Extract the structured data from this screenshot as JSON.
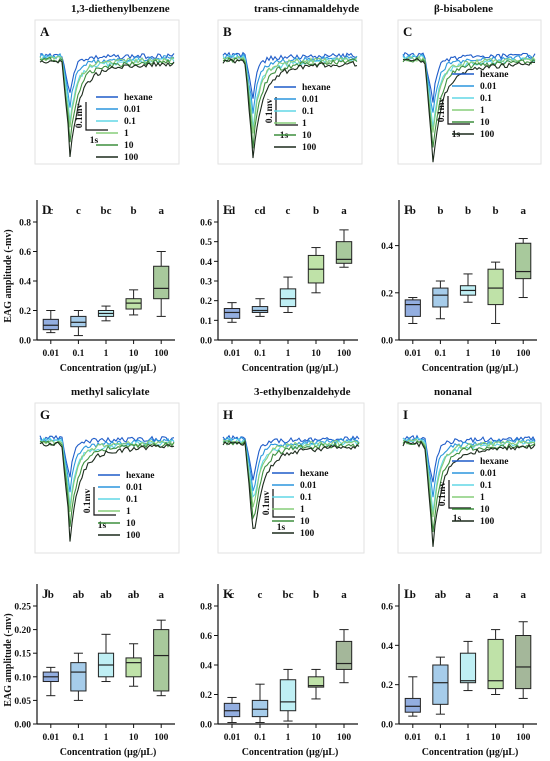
{
  "colors": {
    "hexane": "#1f5cc9",
    "0.01": "#2b96dd",
    "0.1": "#62d7e6",
    "1": "#87cd7a",
    "10": "#3f8f3f",
    "100": "#1c2a1c",
    "box_fills": [
      "#93aee0",
      "#a6ccea",
      "#bfeff4",
      "#bfe2a8",
      "#a8c99c"
    ],
    "box_fills_alt": [
      "#93aee0",
      "#a6ccea",
      "#bfeff4",
      "#bfe2a8",
      "#a4b79a"
    ]
  },
  "legend_labels": [
    "hexane",
    "0.01",
    "0.1",
    "1",
    "10",
    "100"
  ],
  "scale_bar": {
    "y_label": "0.1mv",
    "x_label": "1s"
  },
  "trace_panels": [
    {
      "letter": "A",
      "title": "1,3-diethenylbenzene"
    },
    {
      "letter": "B",
      "title": "trans-cinnamaldehyde"
    },
    {
      "letter": "C",
      "title": "β-bisabolene"
    },
    {
      "letter": "G",
      "title": "methyl salicylate"
    },
    {
      "letter": "H",
      "title": "3-ethylbenzaldehyde"
    },
    {
      "letter": "I",
      "title": "nonanal"
    }
  ],
  "chart_data": [
    {
      "type": "box",
      "panel": "D",
      "categories": [
        "0.01",
        "0.1",
        "1",
        "10",
        "100"
      ],
      "xlabel": "Concentration (μg/μL)",
      "ylabel": "EAG amplitude (-mv)",
      "ylim": [
        0,
        0.8
      ],
      "yticks": [
        "0.0",
        "0.2",
        "0.4",
        "0.6",
        "0.8"
      ],
      "letters": [
        "c",
        "c",
        "bc",
        "b",
        "a"
      ],
      "boxes": [
        {
          "min": 0.05,
          "q1": 0.07,
          "median": 0.1,
          "q3": 0.14,
          "max": 0.2
        },
        {
          "min": 0.03,
          "q1": 0.09,
          "median": 0.12,
          "q3": 0.16,
          "max": 0.2
        },
        {
          "min": 0.13,
          "q1": 0.16,
          "median": 0.18,
          "q3": 0.2,
          "max": 0.23
        },
        {
          "min": 0.17,
          "q1": 0.21,
          "median": 0.25,
          "q3": 0.28,
          "max": 0.34
        },
        {
          "min": 0.16,
          "q1": 0.28,
          "median": 0.35,
          "q3": 0.5,
          "max": 0.6
        }
      ]
    },
    {
      "type": "box",
      "panel": "E",
      "categories": [
        "0.01",
        "0.1",
        "1",
        "10",
        "100"
      ],
      "xlabel": "Concentration (μg/μL)",
      "ylabel": "",
      "ylim": [
        0,
        0.6
      ],
      "yticks": [
        "0.0",
        "0.1",
        "0.2",
        "0.3",
        "0.4",
        "0.5",
        "0.6"
      ],
      "letters": [
        "d",
        "cd",
        "c",
        "b",
        "a"
      ],
      "boxes": [
        {
          "min": 0.09,
          "q1": 0.11,
          "median": 0.14,
          "q3": 0.16,
          "max": 0.19
        },
        {
          "min": 0.12,
          "q1": 0.14,
          "median": 0.15,
          "q3": 0.17,
          "max": 0.21
        },
        {
          "min": 0.14,
          "q1": 0.17,
          "median": 0.21,
          "q3": 0.26,
          "max": 0.32
        },
        {
          "min": 0.24,
          "q1": 0.29,
          "median": 0.36,
          "q3": 0.43,
          "max": 0.47
        },
        {
          "min": 0.37,
          "q1": 0.39,
          "median": 0.41,
          "q3": 0.5,
          "max": 0.56
        }
      ]
    },
    {
      "type": "box",
      "panel": "F",
      "categories": [
        "0.01",
        "0.1",
        "1",
        "10",
        "100"
      ],
      "xlabel": "Concentration (μg/μL)",
      "ylabel": "",
      "ylim": [
        0,
        0.5
      ],
      "yticks": [
        "0.0",
        "0.2",
        "0.4"
      ],
      "letters": [
        "b",
        "b",
        "b",
        "b",
        "a"
      ],
      "boxes": [
        {
          "min": 0.07,
          "q1": 0.1,
          "median": 0.15,
          "q3": 0.17,
          "max": 0.18
        },
        {
          "min": 0.09,
          "q1": 0.14,
          "median": 0.19,
          "q3": 0.22,
          "max": 0.25
        },
        {
          "min": 0.16,
          "q1": 0.19,
          "median": 0.21,
          "q3": 0.23,
          "max": 0.28
        },
        {
          "min": 0.07,
          "q1": 0.15,
          "median": 0.22,
          "q3": 0.3,
          "max": 0.33
        },
        {
          "min": 0.18,
          "q1": 0.26,
          "median": 0.29,
          "q3": 0.41,
          "max": 0.43
        }
      ]
    },
    {
      "type": "box",
      "panel": "J",
      "categories": [
        "0.01",
        "0.1",
        "1",
        "10",
        "100"
      ],
      "xlabel": "Concentration (μg/μL)",
      "ylabel": "EAG amplitude (-mv)",
      "ylim": [
        0,
        0.25
      ],
      "yticks": [
        "0.00",
        "0.05",
        "0.10",
        "0.15",
        "0.20",
        "0.25"
      ],
      "letters": [
        "b",
        "ab",
        "ab",
        "ab",
        "a"
      ],
      "boxes": [
        {
          "min": 0.06,
          "q1": 0.09,
          "median": 0.1,
          "q3": 0.11,
          "max": 0.12
        },
        {
          "min": 0.05,
          "q1": 0.07,
          "median": 0.11,
          "q3": 0.13,
          "max": 0.15
        },
        {
          "min": 0.09,
          "q1": 0.1,
          "median": 0.125,
          "q3": 0.15,
          "max": 0.19
        },
        {
          "min": 0.08,
          "q1": 0.1,
          "median": 0.13,
          "q3": 0.14,
          "max": 0.17
        },
        {
          "min": 0.06,
          "q1": 0.07,
          "median": 0.145,
          "q3": 0.2,
          "max": 0.22
        }
      ]
    },
    {
      "type": "box",
      "panel": "K",
      "categories": [
        "0.01",
        "0.1",
        "1",
        "10",
        "100"
      ],
      "xlabel": "Concentration (μg/μL)",
      "ylabel": "",
      "ylim": [
        0,
        0.8
      ],
      "yticks": [
        "0.0",
        "0.2",
        "0.4",
        "0.6",
        "0.8"
      ],
      "letters": [
        "c",
        "c",
        "bc",
        "b",
        "a"
      ],
      "boxes": [
        {
          "min": 0.01,
          "q1": 0.05,
          "median": 0.09,
          "q3": 0.14,
          "max": 0.18
        },
        {
          "min": 0.01,
          "q1": 0.05,
          "median": 0.1,
          "q3": 0.16,
          "max": 0.27
        },
        {
          "min": 0.02,
          "q1": 0.09,
          "median": 0.15,
          "q3": 0.3,
          "max": 0.37
        },
        {
          "min": 0.17,
          "q1": 0.25,
          "median": 0.26,
          "q3": 0.32,
          "max": 0.37
        },
        {
          "min": 0.28,
          "q1": 0.37,
          "median": 0.41,
          "q3": 0.56,
          "max": 0.64
        }
      ]
    },
    {
      "type": "box",
      "panel": "L",
      "categories": [
        "0.01",
        "0.1",
        "1",
        "10",
        "100"
      ],
      "xlabel": "Concentration (μg/μL)",
      "ylabel": "",
      "ylim": [
        0,
        0.6
      ],
      "yticks": [
        "0.0",
        "0.2",
        "0.4",
        "0.6"
      ],
      "letters": [
        "b",
        "ab",
        "a",
        "a",
        "a"
      ],
      "boxes": [
        {
          "min": 0.04,
          "q1": 0.06,
          "median": 0.09,
          "q3": 0.13,
          "max": 0.24
        },
        {
          "min": 0.05,
          "q1": 0.1,
          "median": 0.21,
          "q3": 0.3,
          "max": 0.34
        },
        {
          "min": 0.17,
          "q1": 0.21,
          "median": 0.22,
          "q3": 0.36,
          "max": 0.42
        },
        {
          "min": 0.15,
          "q1": 0.18,
          "median": 0.22,
          "q3": 0.43,
          "max": 0.48
        },
        {
          "min": 0.13,
          "q1": 0.18,
          "median": 0.29,
          "q3": 0.45,
          "max": 0.52
        }
      ]
    }
  ]
}
